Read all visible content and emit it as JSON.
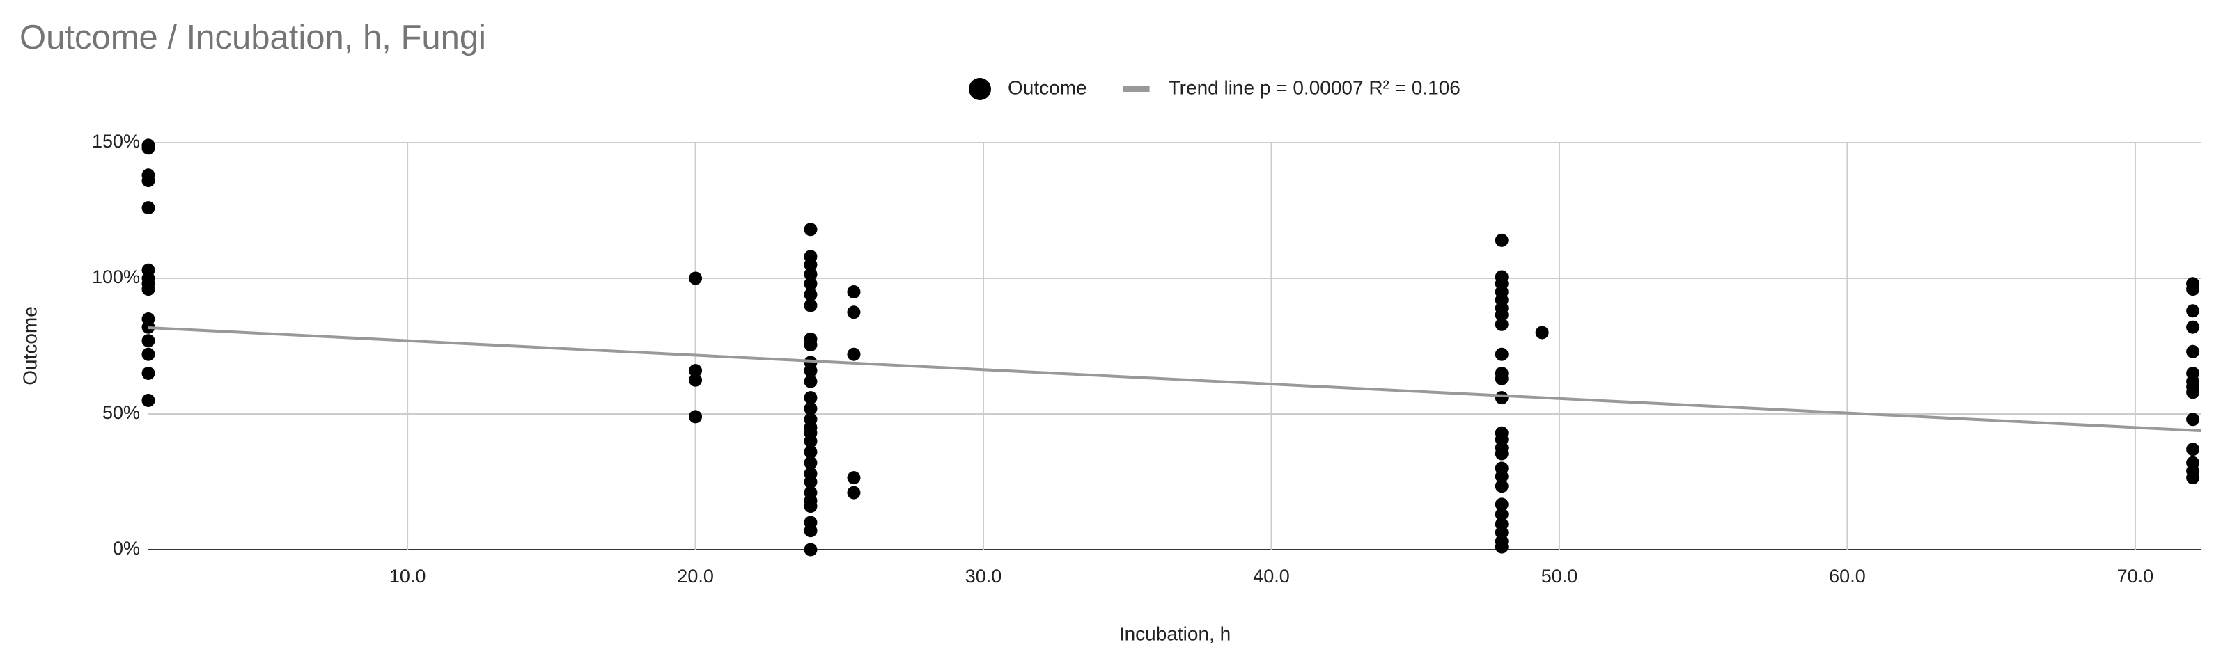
{
  "chart_data": {
    "type": "scatter",
    "title": "Outcome / Incubation, h, Fungi",
    "x_label": "Incubation, h",
    "y_label": "Outcome",
    "xlim": [
      1,
      72.3
    ],
    "ylim": [
      0,
      150
    ],
    "xticks": [
      {
        "value": 10,
        "label": "10.0"
      },
      {
        "value": 20,
        "label": "20.0"
      },
      {
        "value": 30,
        "label": "30.0"
      },
      {
        "value": 40,
        "label": "40.0"
      },
      {
        "value": 50,
        "label": "50.0"
      },
      {
        "value": 60,
        "label": "60.0"
      },
      {
        "value": 70,
        "label": "70.0"
      }
    ],
    "yticks": [
      {
        "value": 0,
        "label": "0%"
      },
      {
        "value": 50,
        "label": "50%"
      },
      {
        "value": 100,
        "label": "100%"
      },
      {
        "value": 150,
        "label": "150%"
      }
    ],
    "grid": true,
    "series": [
      {
        "name": "Outcome",
        "color": "#000000",
        "type": "scatter",
        "x": [
          1,
          1,
          1,
          1,
          1,
          1,
          1,
          1,
          1,
          1,
          1,
          1,
          1,
          1,
          1,
          20,
          20,
          20,
          20,
          24,
          24,
          24,
          24,
          24,
          24,
          24,
          24,
          24,
          24,
          24,
          24,
          24,
          24,
          24,
          24,
          24,
          24,
          24,
          24,
          24,
          24,
          24,
          24,
          24,
          24,
          24,
          24,
          25.5,
          25.5,
          25.5,
          25.5,
          25.5,
          48,
          48,
          48,
          48,
          48,
          48,
          48,
          48,
          48,
          48,
          48,
          48,
          48,
          48,
          48,
          48,
          48,
          48,
          48,
          48,
          48,
          48,
          48,
          48,
          48,
          49.4,
          72,
          72,
          72,
          72,
          72,
          72,
          72,
          72,
          72,
          72,
          72,
          72,
          72,
          72
        ],
        "values": [
          149,
          148,
          138,
          136,
          126,
          103,
          100,
          98,
          96,
          85,
          82,
          77,
          72,
          65,
          55,
          100,
          66,
          62.5,
          49,
          118,
          108,
          105,
          101.5,
          98,
          94,
          90,
          77.6,
          75.5,
          69,
          66,
          62,
          56,
          52,
          48,
          45,
          43,
          40,
          36,
          32,
          28,
          25,
          21,
          18,
          16,
          10,
          7,
          0,
          95,
          87.5,
          72,
          26.5,
          21,
          114,
          100.5,
          98,
          95,
          92,
          89,
          86.5,
          83,
          72,
          65,
          63,
          56,
          43,
          40.6,
          37.5,
          35.4,
          30,
          27,
          23.4,
          16.7,
          13,
          9.4,
          6.3,
          3.1,
          1,
          80,
          98,
          96,
          88,
          82,
          73,
          65,
          62,
          60,
          58,
          48,
          37,
          32,
          29,
          26.5
        ]
      },
      {
        "name": "Trend line p = 0.00007 R² = 0.106",
        "color": "#999999",
        "type": "line",
        "x": [
          1,
          72.3
        ],
        "values": [
          81.8,
          43.8
        ]
      }
    ]
  }
}
